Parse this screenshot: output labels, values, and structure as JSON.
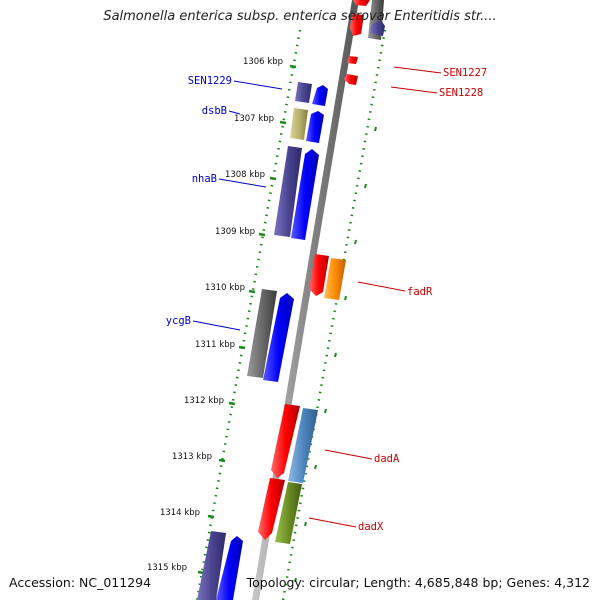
{
  "title": "Salmonella enterica subsp. enterica serovar Enteritidis str....",
  "accession": "Accession: NC_011294",
  "summary": "Topology: circular; Length: 4,685,848 bp; Genes: 4,312",
  "kbp_ticks": [
    "1306 kbp",
    "1307 kbp",
    "1308 kbp",
    "1309 kbp",
    "1310 kbp",
    "1311 kbp",
    "1312 kbp",
    "1313 kbp",
    "1314 kbp",
    "1315 kbp"
  ],
  "gene_labels_left": [
    "SEN1229",
    "dsbB",
    "nhaB",
    "ycgB"
  ],
  "gene_labels_right": [
    "SEN1227",
    "SEN1228",
    "fadR",
    "dadA",
    "dadX"
  ],
  "colors": {
    "backbone": "#8a8a8a",
    "ticks": "#1a8a1a",
    "left_label": "#0000cc",
    "right_label": "#cc0000",
    "blue": "#0000ff",
    "purple": "#4b4593",
    "khaki": "#b9b370",
    "gray": "#666666",
    "red": "#ff0000",
    "orange": "#ff8c00",
    "steelblue": "#4f86c0",
    "olive": "#6b8e23"
  }
}
